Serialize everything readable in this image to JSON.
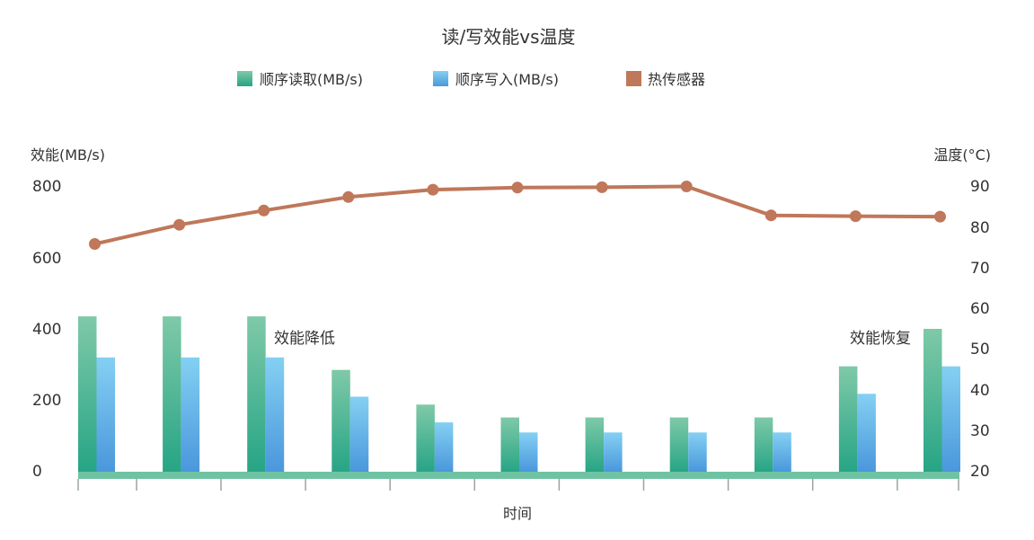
{
  "chart_data": {
    "type": "bar",
    "title": "读/写效能vs温度",
    "xlabel": "时间",
    "ylabel_left": "效能(MB/s)",
    "ylabel_right": "温度(°C)",
    "ylim_left": [
      0,
      800
    ],
    "ylim_right": [
      20,
      90
    ],
    "yticks_left": [
      "800",
      "600",
      "400",
      "200",
      "0"
    ],
    "yticks_right": [
      "90",
      "80",
      "70",
      "60",
      "50",
      "40",
      "30",
      "20"
    ],
    "legend_position": "top-center",
    "grid": false,
    "categories": [
      "",
      "",
      "",
      "",
      "",
      "",
      "",
      "",
      "",
      "",
      ""
    ],
    "series": [
      {
        "name": "顺序读取(MB/s)",
        "type": "bar",
        "axis": "left",
        "color": "#2fa98c",
        "values": [
          435,
          435,
          435,
          285,
          188,
          152,
          152,
          152,
          152,
          295,
          400
        ]
      },
      {
        "name": "顺序写入(MB/s)",
        "type": "bar",
        "axis": "left",
        "color": "#4ba3e0",
        "values": [
          320,
          320,
          320,
          210,
          138,
          110,
          110,
          110,
          110,
          218,
          295
        ]
      },
      {
        "name": "热传感器",
        "type": "line",
        "axis": "right",
        "color": "#c0775a",
        "values": [
          75.8,
          80.5,
          84,
          87.3,
          89.1,
          89.6,
          89.7,
          89.9,
          82.8,
          82.6,
          82.5
        ]
      }
    ],
    "annotations": [
      {
        "text": "效能降低",
        "near_category": 2
      },
      {
        "text": "效能恢复",
        "near_category": 10
      }
    ]
  },
  "colors": {
    "axis": "#6fc3a3",
    "read_top": "#7fc9a8",
    "read_bottom": "#26a585",
    "write_top": "#84d0f3",
    "write_bottom": "#4a97dc",
    "line": "#c0775a"
  }
}
